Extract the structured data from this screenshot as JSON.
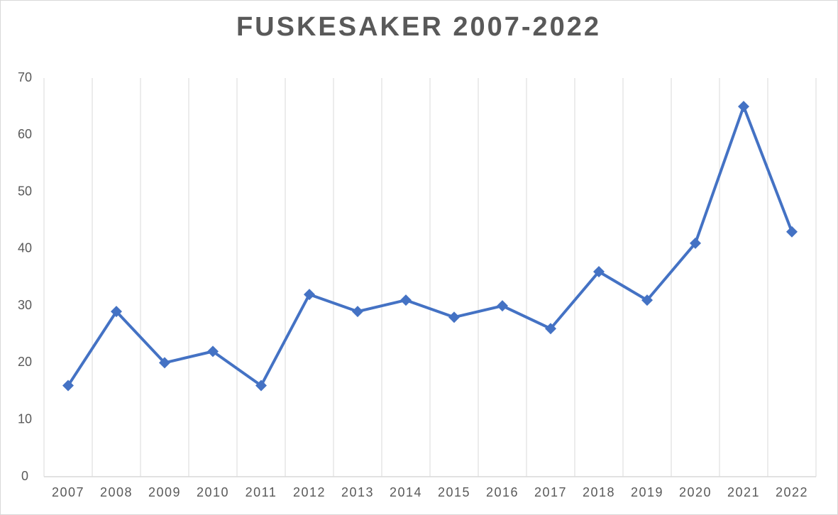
{
  "chart_data": {
    "type": "line",
    "title": "FUSKESAKER 2007-2022",
    "categories": [
      "2007",
      "2008",
      "2009",
      "2010",
      "2011",
      "2012",
      "2013",
      "2014",
      "2015",
      "2016",
      "2017",
      "2018",
      "2019",
      "2020",
      "2021",
      "2022"
    ],
    "series": [
      {
        "name": "Fuskesaker",
        "color": "#4472c4",
        "values": [
          16,
          29,
          20,
          22,
          16,
          32,
          29,
          31,
          28,
          30,
          26,
          36,
          31,
          41,
          65,
          43
        ]
      }
    ],
    "ylim": [
      0,
      70
    ],
    "yticks": [
      0,
      10,
      20,
      30,
      40,
      50,
      60,
      70
    ],
    "grid": true,
    "legend": false
  }
}
